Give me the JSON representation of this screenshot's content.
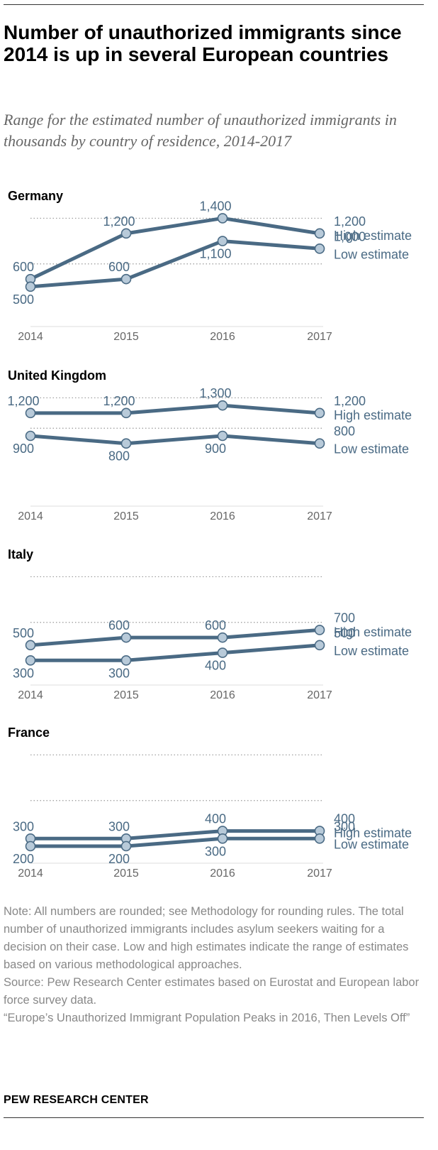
{
  "title": "Number of unauthorized immigrants since 2014 is up in several European countries",
  "subtitle": "Range for the estimated number of unauthorized immigrants in thousands by country of residence, 2014-2017",
  "colors": {
    "line": "#4a6a84",
    "marker_fill": "#b8cad9",
    "text": "#4a6a84",
    "axis_text": "#666666",
    "grid": "#999999"
  },
  "chart_data": [
    {
      "type": "line",
      "title": "Germany",
      "categories": [
        "2014",
        "2015",
        "2016",
        "2017"
      ],
      "ylim": [
        200,
        1600
      ],
      "gridlines": [
        800,
        1400
      ],
      "series": [
        {
          "name": "High estimate",
          "values": [
            600,
            1200,
            1400,
            1200
          ],
          "labels": [
            "600",
            "1,200",
            "1,400",
            "1,200"
          ],
          "label_pos": [
            "above",
            "above",
            "above",
            "above"
          ]
        },
        {
          "name": "Low estimate",
          "values": [
            500,
            600,
            1100,
            1000
          ],
          "labels": [
            "500",
            "600",
            "1,100",
            "1,000"
          ],
          "label_pos": [
            "below",
            "above",
            "below",
            "above"
          ]
        }
      ]
    },
    {
      "type": "line",
      "title": "United Kingdom",
      "categories": [
        "2014",
        "2015",
        "2016",
        "2017"
      ],
      "ylim": [
        200,
        1600
      ],
      "gridlines": [
        1000,
        1400
      ],
      "series": [
        {
          "name": "High estimate",
          "values": [
            1200,
            1200,
            1300,
            1200
          ],
          "labels": [
            "1,200",
            "1,200",
            "1,300",
            "1,200"
          ],
          "label_pos": [
            "above",
            "above",
            "above",
            "above"
          ]
        },
        {
          "name": "Low estimate",
          "values": [
            900,
            800,
            900,
            800
          ],
          "labels": [
            "900",
            "800",
            "900",
            "800"
          ],
          "label_pos": [
            "below",
            "below",
            "below",
            "above"
          ]
        }
      ]
    },
    {
      "type": "line",
      "title": "Italy",
      "categories": [
        "2014",
        "2015",
        "2016",
        "2017"
      ],
      "ylim": [
        200,
        1600
      ],
      "gridlines": [
        800,
        1400
      ],
      "series": [
        {
          "name": "High estimate",
          "values": [
            500,
            600,
            600,
            700
          ],
          "labels": [
            "500",
            "600",
            "600",
            "700"
          ],
          "label_pos": [
            "above",
            "above",
            "above",
            "above"
          ]
        },
        {
          "name": "Low estimate",
          "values": [
            300,
            300,
            400,
            500
          ],
          "labels": [
            "300",
            "300",
            "400",
            "500"
          ],
          "label_pos": [
            "below",
            "below",
            "below",
            "above"
          ]
        }
      ]
    },
    {
      "type": "line",
      "title": "France",
      "categories": [
        "2014",
        "2015",
        "2016",
        "2017"
      ],
      "ylim": [
        200,
        1600
      ],
      "gridlines": [
        800,
        1400
      ],
      "series": [
        {
          "name": "High estimate",
          "values": [
            300,
            300,
            400,
            400
          ],
          "labels": [
            "300",
            "300",
            "400",
            "400"
          ],
          "label_pos": [
            "above",
            "above",
            "above",
            "above"
          ]
        },
        {
          "name": "Low estimate",
          "values": [
            200,
            200,
            300,
            300
          ],
          "labels": [
            "200",
            "200",
            "300",
            "300"
          ],
          "label_pos": [
            "below",
            "below",
            "below",
            "above"
          ]
        }
      ]
    }
  ],
  "notes": {
    "note": "Note: All numbers are rounded; see Methodology for rounding rules. The total number of unauthorized immigrants includes asylum seekers waiting for a decision on their case. Low and high estimates indicate the range of estimates based on various methodological approaches.",
    "source": "Source:  Pew Research Center estimates based on Eurostat and European labor force survey data.",
    "report": "“Europe’s Unauthorized Immigrant Population Peaks in 2016, Then Levels Off”"
  },
  "brand": "PEW RESEARCH CENTER"
}
